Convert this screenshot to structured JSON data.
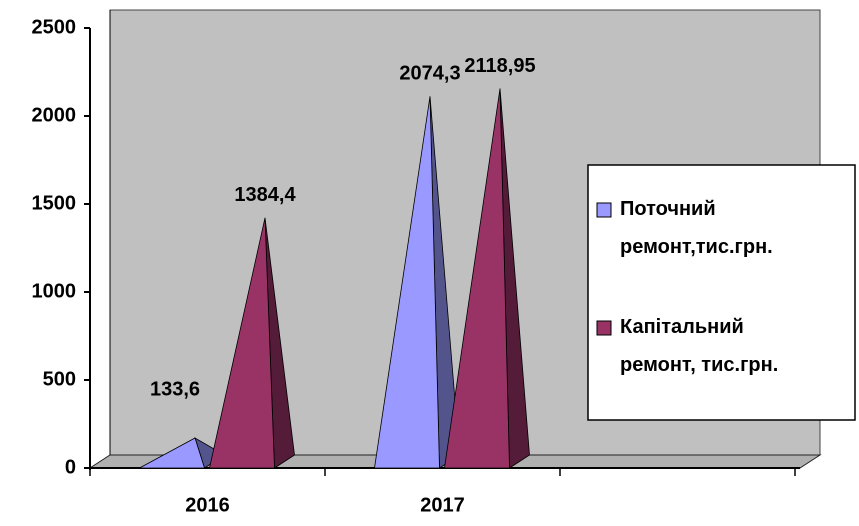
{
  "chart_data": {
    "type": "pyramid3d",
    "categories": [
      "2016",
      "2017"
    ],
    "series": [
      {
        "name": "Поточний ремонт,тис.грн.",
        "color": "#9999ff",
        "values": [
          133.6,
          2074.3
        ],
        "value_labels": [
          "133,6",
          "2074,3"
        ]
      },
      {
        "name": "Капітальний ремонт, тис.грн.",
        "color": "#993366",
        "values": [
          1384.4,
          2118.95
        ],
        "value_labels": [
          "1384,4",
          "2118,95"
        ]
      }
    ],
    "ylim": [
      0,
      2500
    ],
    "yticks": [
      0,
      500,
      1000,
      1500,
      2000,
      2500
    ]
  }
}
